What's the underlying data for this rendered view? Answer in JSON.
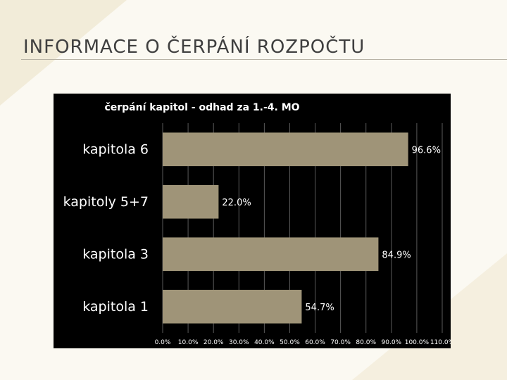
{
  "slide": {
    "title": "INFORMACE O ČERPÁNÍ ROZPOČTU"
  },
  "colors": {
    "bar_fill": "#9f9478",
    "panel_bg": "#000000",
    "text": "#ffffff"
  },
  "chart_data": {
    "type": "bar",
    "orientation": "horizontal",
    "title": "čerpání kapitol - odhad za 1.-4. MO",
    "categories": [
      "kapitola 6",
      "kapitoly 5+7",
      "kapitola 3",
      "kapitola 1"
    ],
    "values": [
      96.6,
      22.0,
      84.9,
      54.7
    ],
    "value_labels": [
      "96.6%",
      "22.0%",
      "84.9%",
      "54.7%"
    ],
    "xlim": [
      0,
      110
    ],
    "xticks": [
      "0.0%",
      "10.0%",
      "20.0%",
      "30.0%",
      "40.0%",
      "50.0%",
      "60.0%",
      "70.0%",
      "80.0%",
      "90.0%",
      "100.0%",
      "110.0%"
    ],
    "grid": true,
    "legend": "none"
  }
}
